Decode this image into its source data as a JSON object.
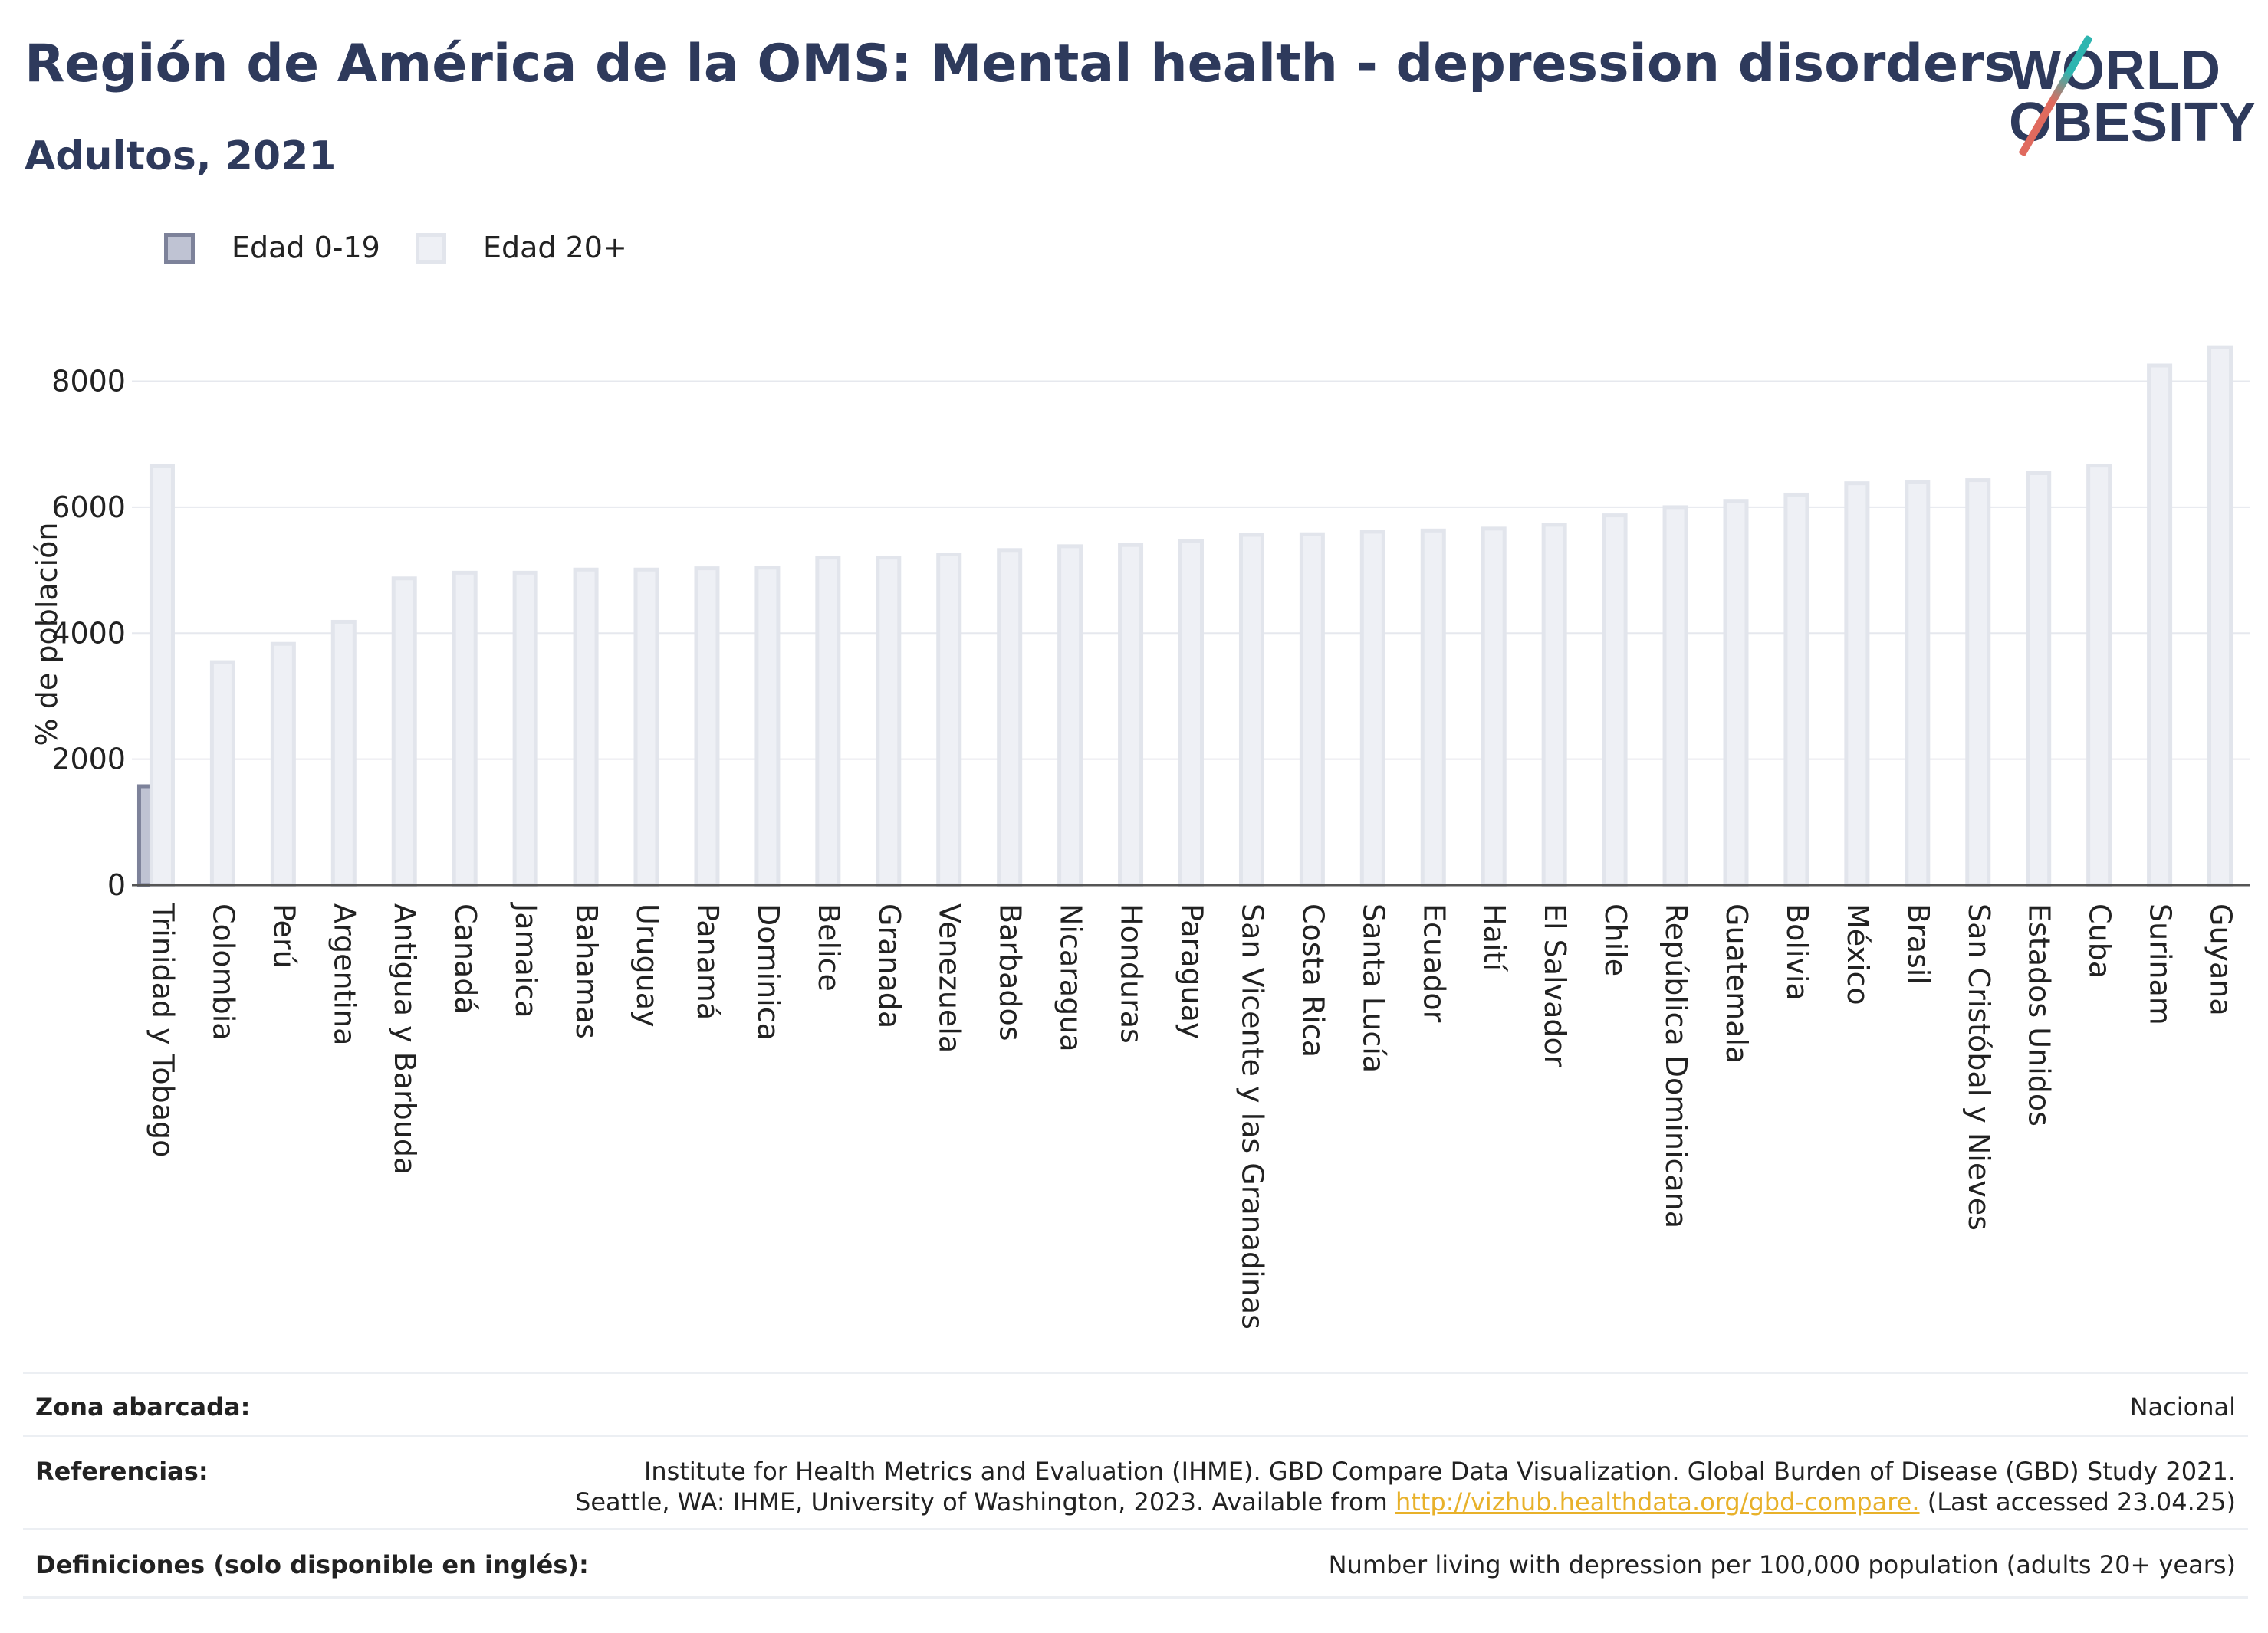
{
  "header": {
    "title": "Región de América de la OMS: Mental health - depression disorders",
    "subtitle": "Adultos, 2021"
  },
  "logo": {
    "line1": "W",
    "line1b": "RLD",
    "line2": "OBESITY"
  },
  "legend": [
    {
      "label": "Edad 0-19",
      "fill": "#bfc3d3",
      "stroke": "#7d829a"
    },
    {
      "label": "Edad 20+",
      "fill": "#eef0f5",
      "stroke": "#e2e5ec"
    }
  ],
  "chart_data": {
    "type": "bar",
    "ylabel": "% de población",
    "ylim": [
      0,
      8700
    ],
    "yticks": [
      "0",
      "2000",
      "4000",
      "6000",
      "8000"
    ],
    "grid": true,
    "legend_position": "top-left",
    "categories": [
      "Trinidad y Tobago",
      "Colombia",
      "Perú",
      "Argentina",
      "Antigua y Barbuda",
      "Canadá",
      "Jamaica",
      "Bahamas",
      "Uruguay",
      "Panamá",
      "Dominica",
      "Belice",
      "Granada",
      "Venezuela",
      "Barbados",
      "Nicaragua",
      "Honduras",
      "Paraguay",
      "San Vicente y las Granadinas",
      "Costa Rica",
      "Santa Lucía",
      "Ecuador",
      "Haití",
      "El Salvador",
      "Chile",
      "República Dominicana",
      "Guatemala",
      "Bolivia",
      "México",
      "Brasil",
      "San Cristóbal y Nieves",
      "Estados Unidos",
      "Cuba",
      "Surinam",
      "Guyana"
    ],
    "series": [
      {
        "name": "Edad 0-19",
        "color": "#bfc3d3",
        "stroke": "#7d829a",
        "values": [
          1570,
          null,
          null,
          null,
          null,
          null,
          null,
          null,
          null,
          null,
          null,
          null,
          null,
          null,
          null,
          null,
          null,
          null,
          null,
          null,
          null,
          null,
          null,
          null,
          null,
          null,
          null,
          null,
          null,
          null,
          null,
          null,
          null,
          null,
          null
        ]
      },
      {
        "name": "Edad 20+",
        "color": "#eef0f5",
        "stroke": "#e2e5ec",
        "values": [
          6650,
          3540,
          3830,
          4180,
          4870,
          4960,
          4960,
          5010,
          5010,
          5030,
          5040,
          5200,
          5200,
          5250,
          5320,
          5380,
          5400,
          5460,
          5560,
          5570,
          5610,
          5630,
          5660,
          5720,
          5870,
          6000,
          6100,
          6200,
          6380,
          6400,
          6430,
          6540,
          6660,
          8250,
          8540
        ]
      }
    ]
  },
  "footer": {
    "rows": [
      {
        "label": "Zona abarcada:",
        "value_lines": [
          "Nacional"
        ]
      },
      {
        "label": "Referencias:",
        "value_lines": [
          "Institute for Health Metrics and Evaluation (IHME). GBD Compare Data Visualization. Global Burden of Disease (GBD) Study 2021.",
          "Seattle, WA: IHME, University of Washington, 2023. Available from "
        ],
        "link": "http://vizhub.healthdata.org/gbd-compare.",
        "after_link": " (Last accessed 23.04.25)"
      },
      {
        "label": "Definiciones (solo disponible en inglés):",
        "value_lines": [
          "Number living with depression per 100,000 population (adults 20+ years)"
        ]
      }
    ]
  }
}
